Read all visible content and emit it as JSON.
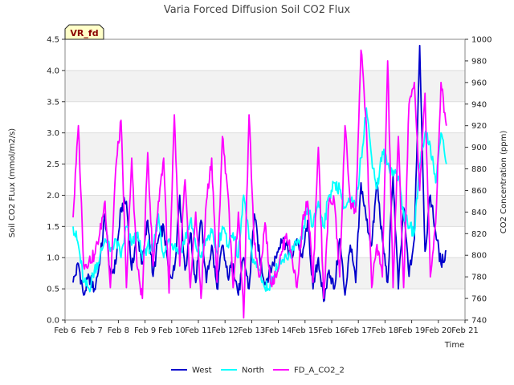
{
  "chart_data": {
    "type": "line",
    "title": "Varia Forced Diffusion Soil CO2 Flux",
    "badge": "VR_fd",
    "xlabel": "Time",
    "ylabel_left": "Soil CO2 FLux (mmol/m2/s)",
    "ylabel_right": "CO2 Concentration (ppm)",
    "x_ticks": [
      "Feb 6",
      "Feb 7",
      "Feb 8",
      "Feb 9",
      "Feb 10",
      "Feb 11",
      "Feb 12",
      "Feb 13",
      "Feb 14",
      "Feb 15",
      "Feb 16",
      "Feb 17",
      "Feb 18",
      "Feb 19",
      "Feb 20",
      "Feb 21"
    ],
    "xlim": [
      6,
      21
    ],
    "ylim_left": [
      0.0,
      4.5
    ],
    "ylim_right": [
      740,
      1000
    ],
    "y_ticks_left": [
      "0.0",
      "0.5",
      "1.0",
      "1.5",
      "2.0",
      "2.5",
      "3.0",
      "3.5",
      "4.0",
      "4.5"
    ],
    "y_ticks_right": [
      "740",
      "760",
      "780",
      "800",
      "820",
      "840",
      "860",
      "880",
      "900",
      "920",
      "940",
      "960",
      "980",
      "1000"
    ],
    "grid": "horizontal bands",
    "legend_position": "bottom",
    "series": [
      {
        "name": "West",
        "axis": "left",
        "color": "#0000cc",
        "x": [
          6.3,
          6.5,
          6.7,
          6.9,
          7.1,
          7.3,
          7.5,
          7.7,
          7.9,
          8.1,
          8.3,
          8.5,
          8.7,
          8.9,
          9.1,
          9.3,
          9.5,
          9.7,
          9.9,
          10.1,
          10.3,
          10.5,
          10.7,
          10.9,
          11.1,
          11.3,
          11.5,
          11.7,
          11.9,
          12.1,
          12.3,
          12.5,
          12.7,
          12.9,
          13.1,
          13.3,
          13.5,
          13.7,
          13.9,
          14.1,
          14.3,
          14.5,
          14.7,
          14.9,
          15.1,
          15.3,
          15.5,
          15.7,
          15.9,
          16.1,
          16.3,
          16.5,
          16.7,
          16.9,
          17.1,
          17.3,
          17.5,
          17.7,
          17.9,
          18.1,
          18.3,
          18.5,
          18.7,
          18.9,
          19.1,
          19.3,
          19.5,
          19.7,
          19.9,
          20.1,
          20.3
        ],
        "y": [
          0.6,
          0.9,
          0.4,
          0.7,
          0.5,
          0.9,
          1.7,
          0.7,
          0.9,
          1.8,
          1.9,
          0.8,
          1.4,
          0.9,
          1.6,
          0.7,
          1.3,
          1.5,
          0.7,
          0.8,
          2.0,
          0.8,
          1.4,
          0.6,
          1.6,
          0.6,
          1.2,
          0.5,
          1.2,
          0.7,
          0.9,
          0.4,
          1.0,
          0.5,
          1.7,
          1.0,
          0.6,
          0.8,
          1.0,
          1.3,
          1.2,
          1.0,
          1.3,
          1.0,
          1.6,
          0.5,
          1.0,
          0.3,
          0.8,
          0.5,
          1.3,
          0.4,
          1.2,
          0.6,
          2.2,
          1.6,
          1.2,
          2.2,
          1.3,
          0.6,
          2.3,
          0.5,
          1.8,
          0.7,
          1.3,
          4.4,
          1.1,
          2.0,
          1.4,
          0.9,
          1.1
        ]
      },
      {
        "name": "North",
        "axis": "left",
        "color": "#00ffff",
        "x": [
          6.3,
          6.5,
          6.7,
          6.9,
          7.1,
          7.3,
          7.5,
          7.7,
          7.9,
          8.1,
          8.3,
          8.5,
          8.7,
          8.9,
          9.1,
          9.3,
          9.5,
          9.7,
          9.9,
          10.1,
          10.3,
          10.5,
          10.7,
          10.9,
          11.1,
          11.3,
          11.5,
          11.7,
          11.9,
          12.1,
          12.3,
          12.5,
          12.7,
          12.9,
          13.1,
          13.3,
          13.5,
          13.7,
          13.9,
          14.1,
          14.3,
          14.5,
          14.7,
          14.9,
          15.1,
          15.3,
          15.5,
          15.7,
          15.9,
          16.1,
          16.3,
          16.5,
          16.7,
          16.9,
          17.1,
          17.3,
          17.5,
          17.7,
          17.9,
          18.1,
          18.3,
          18.5,
          18.7,
          18.9,
          19.1,
          19.3,
          19.5,
          19.7,
          19.9,
          20.1,
          20.3
        ],
        "y": [
          1.5,
          1.2,
          0.6,
          0.5,
          0.8,
          1.0,
          1.3,
          1.1,
          1.3,
          1.0,
          1.5,
          1.2,
          1.4,
          1.0,
          1.2,
          1.1,
          1.7,
          1.0,
          1.3,
          1.2,
          1.1,
          1.3,
          1.6,
          1.2,
          1.0,
          1.3,
          1.4,
          1.1,
          1.5,
          1.2,
          1.4,
          1.0,
          2.0,
          1.3,
          0.9,
          0.8,
          0.5,
          0.6,
          0.8,
          0.9,
          1.0,
          1.1,
          1.2,
          1.3,
          1.8,
          1.5,
          1.9,
          1.5,
          2.0,
          2.2,
          2.1,
          1.8,
          1.9,
          1.8,
          2.6,
          3.4,
          2.6,
          2.1,
          2.7,
          2.5,
          2.4,
          2.3,
          1.7,
          1.5,
          1.4,
          2.5,
          3.0,
          2.8,
          2.2,
          3.0,
          2.5
        ]
      },
      {
        "name": "FD_A_CO2_2",
        "axis": "right",
        "color": "#ff00ff",
        "x": [
          6.3,
          6.5,
          6.7,
          6.9,
          7.1,
          7.3,
          7.5,
          7.7,
          7.9,
          8.1,
          8.3,
          8.5,
          8.7,
          8.9,
          9.1,
          9.3,
          9.5,
          9.7,
          9.9,
          10.1,
          10.3,
          10.5,
          10.7,
          10.9,
          11.1,
          11.3,
          11.5,
          11.7,
          11.9,
          12.1,
          12.3,
          12.5,
          12.7,
          12.9,
          13.1,
          13.3,
          13.5,
          13.7,
          13.9,
          14.1,
          14.3,
          14.5,
          14.7,
          14.9,
          15.1,
          15.3,
          15.5,
          15.7,
          15.9,
          16.1,
          16.3,
          16.5,
          16.7,
          16.9,
          17.1,
          17.3,
          17.5,
          17.7,
          17.9,
          18.1,
          18.3,
          18.5,
          18.7,
          18.9,
          19.1,
          19.3,
          19.5,
          19.7,
          19.9,
          20.1,
          20.3
        ],
        "y": [
          835,
          920,
          790,
          795,
          800,
          820,
          850,
          770,
          880,
          925,
          770,
          890,
          790,
          760,
          895,
          790,
          850,
          890,
          765,
          930,
          790,
          870,
          770,
          840,
          760,
          850,
          890,
          775,
          910,
          860,
          770,
          840,
          742,
          930,
          810,
          780,
          830,
          775,
          780,
          800,
          820,
          800,
          770,
          830,
          850,
          775,
          900,
          760,
          850,
          850,
          780,
          920,
          850,
          840,
          990,
          920,
          770,
          810,
          780,
          980,
          770,
          910,
          770,
          940,
          960,
          860,
          950,
          780,
          830,
          960,
          920
        ]
      }
    ]
  }
}
